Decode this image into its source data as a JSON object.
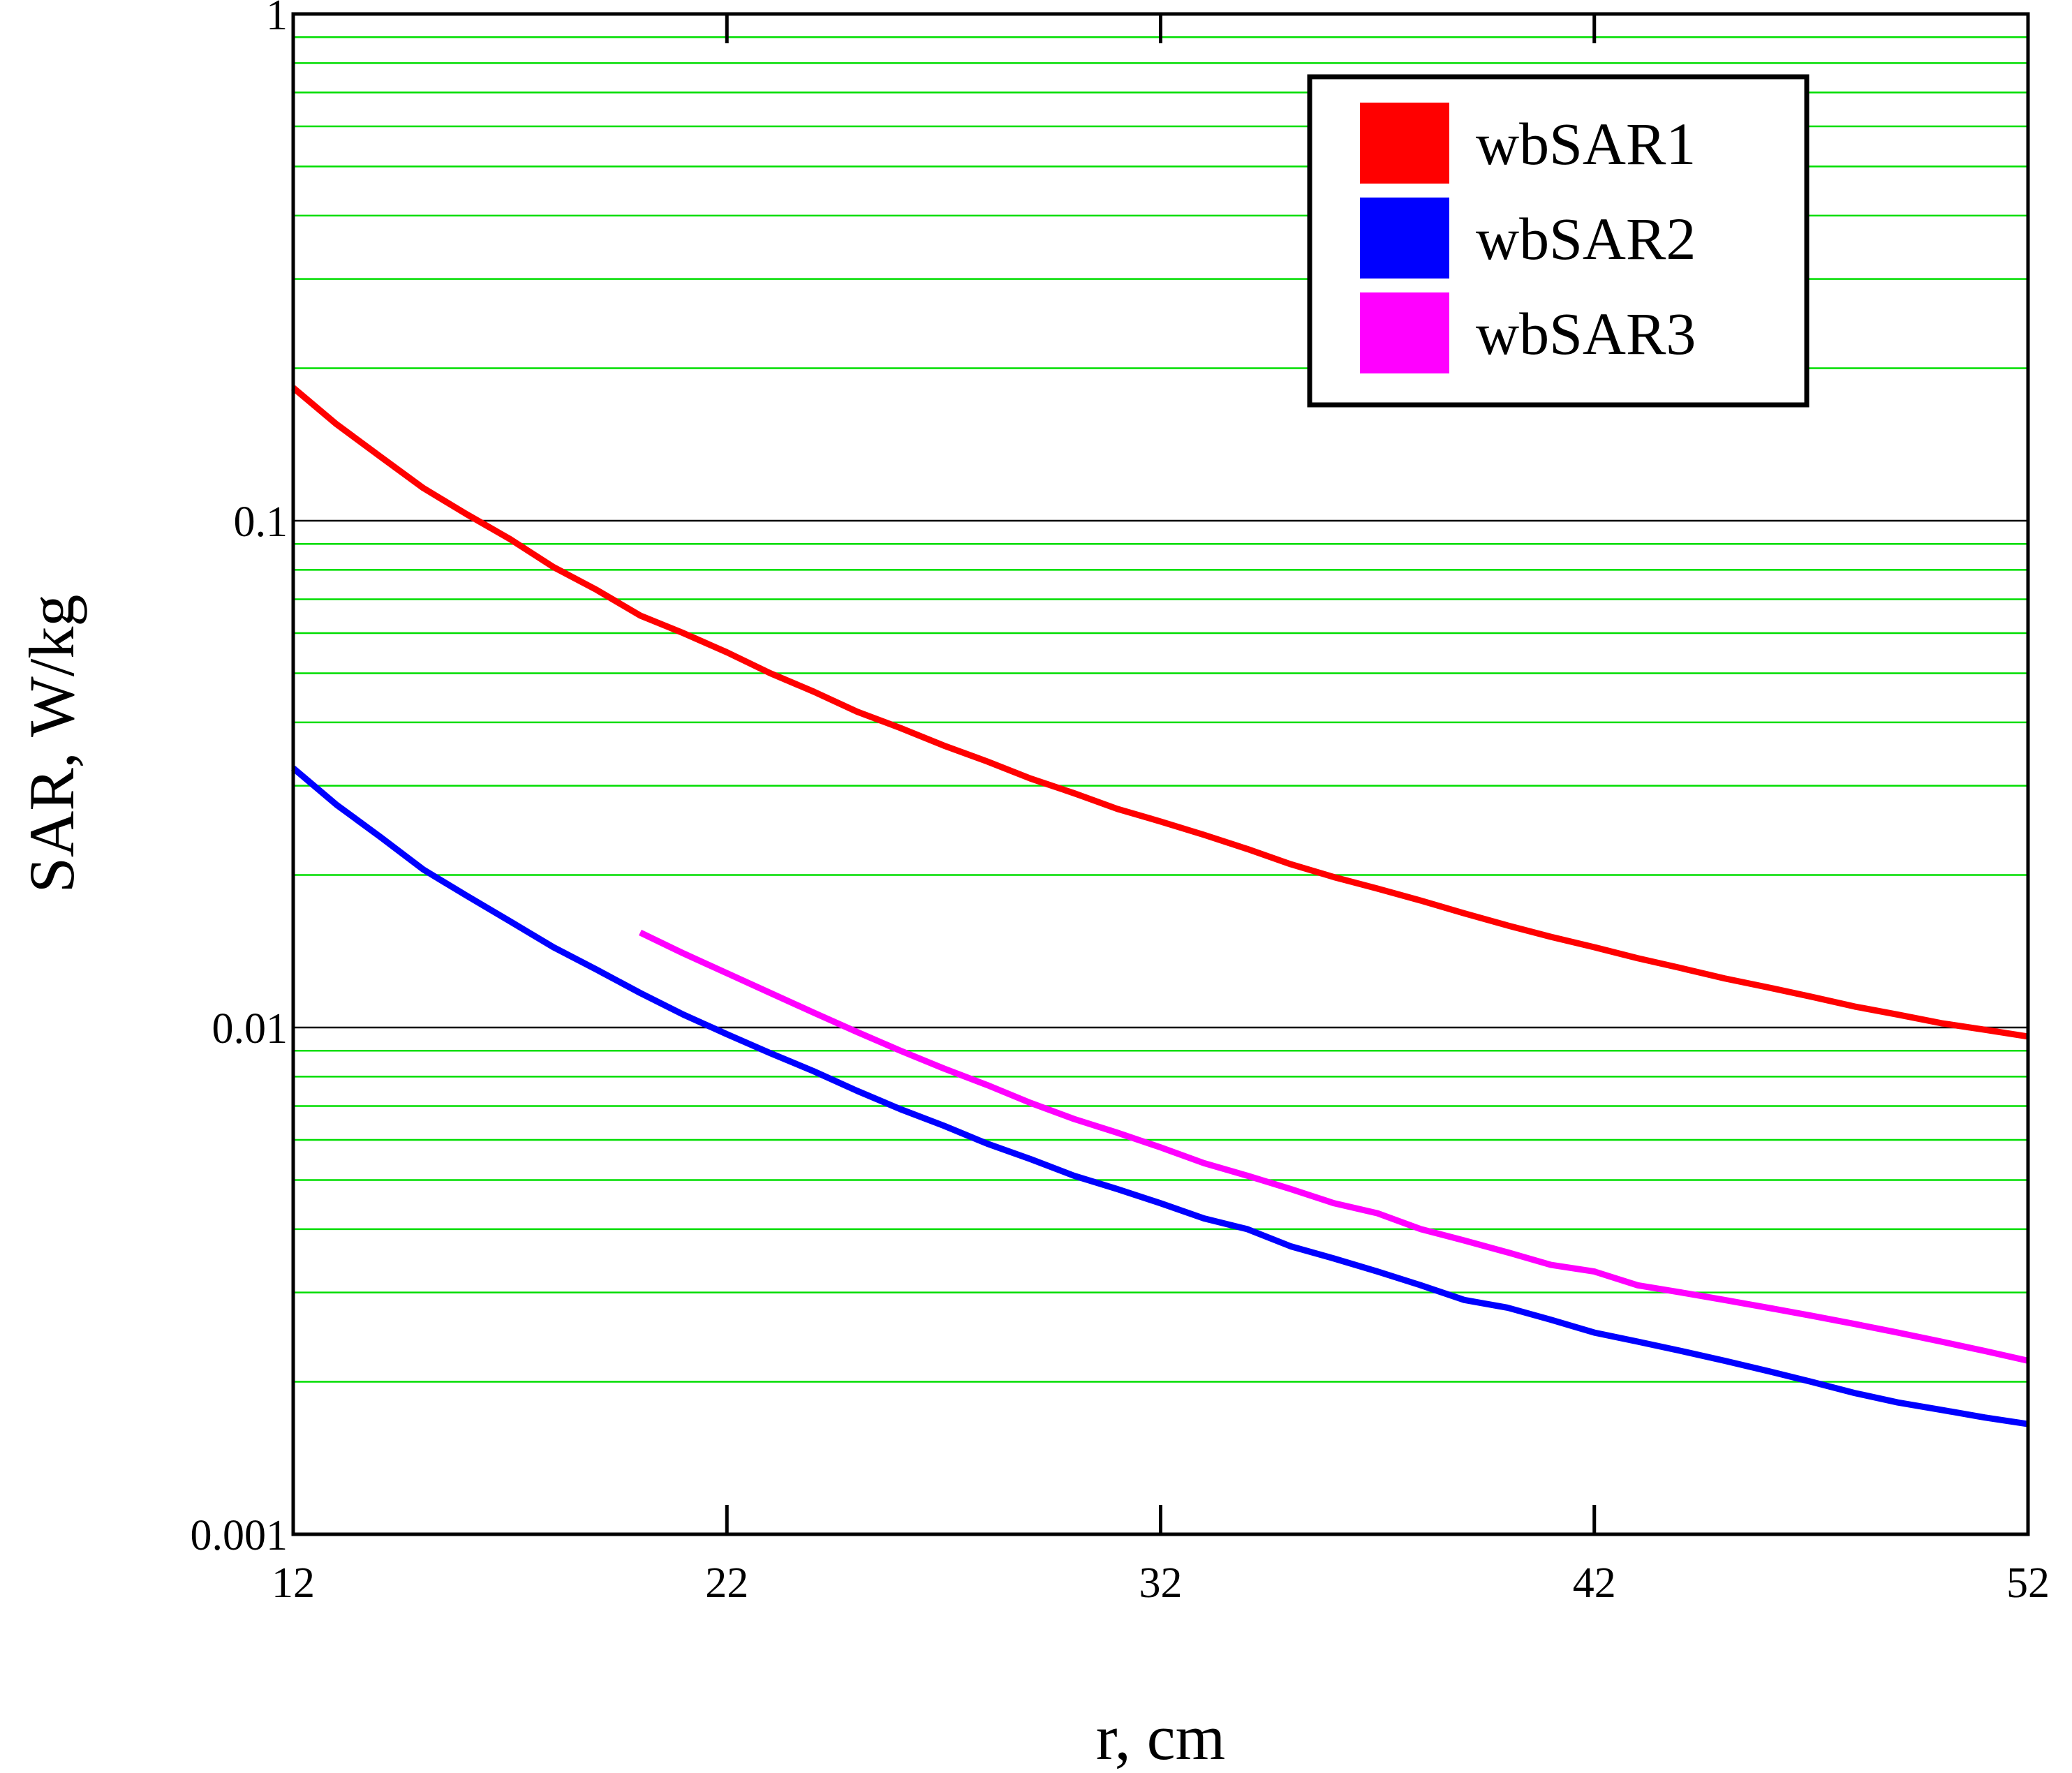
{
  "chart_data": {
    "type": "line",
    "title": "",
    "xlabel": "r, cm",
    "ylabel": "SAR, W/kg",
    "xlim": [
      12,
      52
    ],
    "ylim": [
      0.001,
      1
    ],
    "yscale": "log",
    "x_ticks": [
      "12",
      "22",
      "32",
      "42",
      "52"
    ],
    "y_ticks": [
      "0.001",
      "0.01",
      "0.1",
      "1"
    ],
    "grid": {
      "major": true,
      "minor": true,
      "major_color": "#000000",
      "minor_color": "#00dd00"
    },
    "legend": {
      "position": "top-right"
    },
    "series": [
      {
        "name": "wbSAR1",
        "color": "#ff0000",
        "x": [
          12,
          13,
          14,
          15,
          16,
          17,
          18,
          19,
          20,
          21,
          22,
          23,
          24,
          25,
          26,
          27,
          28,
          29,
          30,
          31,
          32,
          33,
          34,
          35,
          36,
          37,
          38,
          39,
          40,
          41,
          42,
          43,
          44,
          45,
          46,
          47,
          48,
          49,
          50,
          51,
          52
        ],
        "values": [
          0.183,
          0.155,
          0.134,
          0.116,
          0.103,
          0.092,
          0.081,
          0.073,
          0.065,
          0.06,
          0.055,
          0.05,
          0.046,
          0.042,
          0.039,
          0.036,
          0.0335,
          0.031,
          0.029,
          0.027,
          0.0255,
          0.024,
          0.0225,
          0.021,
          0.0198,
          0.0188,
          0.0178,
          0.0168,
          0.0159,
          0.0151,
          0.0144,
          0.0137,
          0.0131,
          0.0125,
          0.012,
          0.0115,
          0.011,
          0.0106,
          0.0102,
          0.0099,
          0.0096
        ]
      },
      {
        "name": "wbSAR2",
        "color": "#0000ff",
        "x": [
          12,
          13,
          14,
          15,
          16,
          17,
          18,
          19,
          20,
          21,
          22,
          23,
          24,
          25,
          26,
          27,
          28,
          29,
          30,
          31,
          32,
          33,
          34,
          35,
          36,
          37,
          38,
          39,
          40,
          41,
          42,
          43,
          44,
          45,
          46,
          47,
          48,
          49,
          50,
          51,
          52
        ],
        "values": [
          0.0325,
          0.0275,
          0.0238,
          0.0205,
          0.0182,
          0.0162,
          0.0144,
          0.013,
          0.0117,
          0.0106,
          0.0097,
          0.0089,
          0.0082,
          0.0075,
          0.0069,
          0.0064,
          0.0059,
          0.0055,
          0.0051,
          0.0048,
          0.0045,
          0.0042,
          0.004,
          0.0037,
          0.0035,
          0.0033,
          0.0031,
          0.0029,
          0.0028,
          0.00265,
          0.0025,
          0.0024,
          0.0023,
          0.0022,
          0.0021,
          0.002,
          0.0019,
          0.00182,
          0.00176,
          0.0017,
          0.00165
        ]
      },
      {
        "name": "wbSAR3",
        "color": "#ff00ff",
        "x": [
          20,
          21,
          22,
          23,
          24,
          25,
          26,
          27,
          28,
          29,
          30,
          31,
          32,
          33,
          34,
          35,
          36,
          37,
          38,
          39,
          40,
          41,
          42,
          43,
          44,
          45,
          46,
          47,
          48,
          49,
          50,
          51,
          52
        ],
        "values": [
          0.0154,
          0.014,
          0.0128,
          0.0117,
          0.0107,
          0.0098,
          0.009,
          0.0083,
          0.0077,
          0.0071,
          0.0066,
          0.0062,
          0.0058,
          0.0054,
          0.0051,
          0.0048,
          0.0045,
          0.0043,
          0.004,
          0.0038,
          0.0036,
          0.0034,
          0.0033,
          0.0031,
          0.003,
          0.0029,
          0.0028,
          0.0027,
          0.0026,
          0.0025,
          0.0024,
          0.0023,
          0.0022
        ]
      }
    ]
  }
}
